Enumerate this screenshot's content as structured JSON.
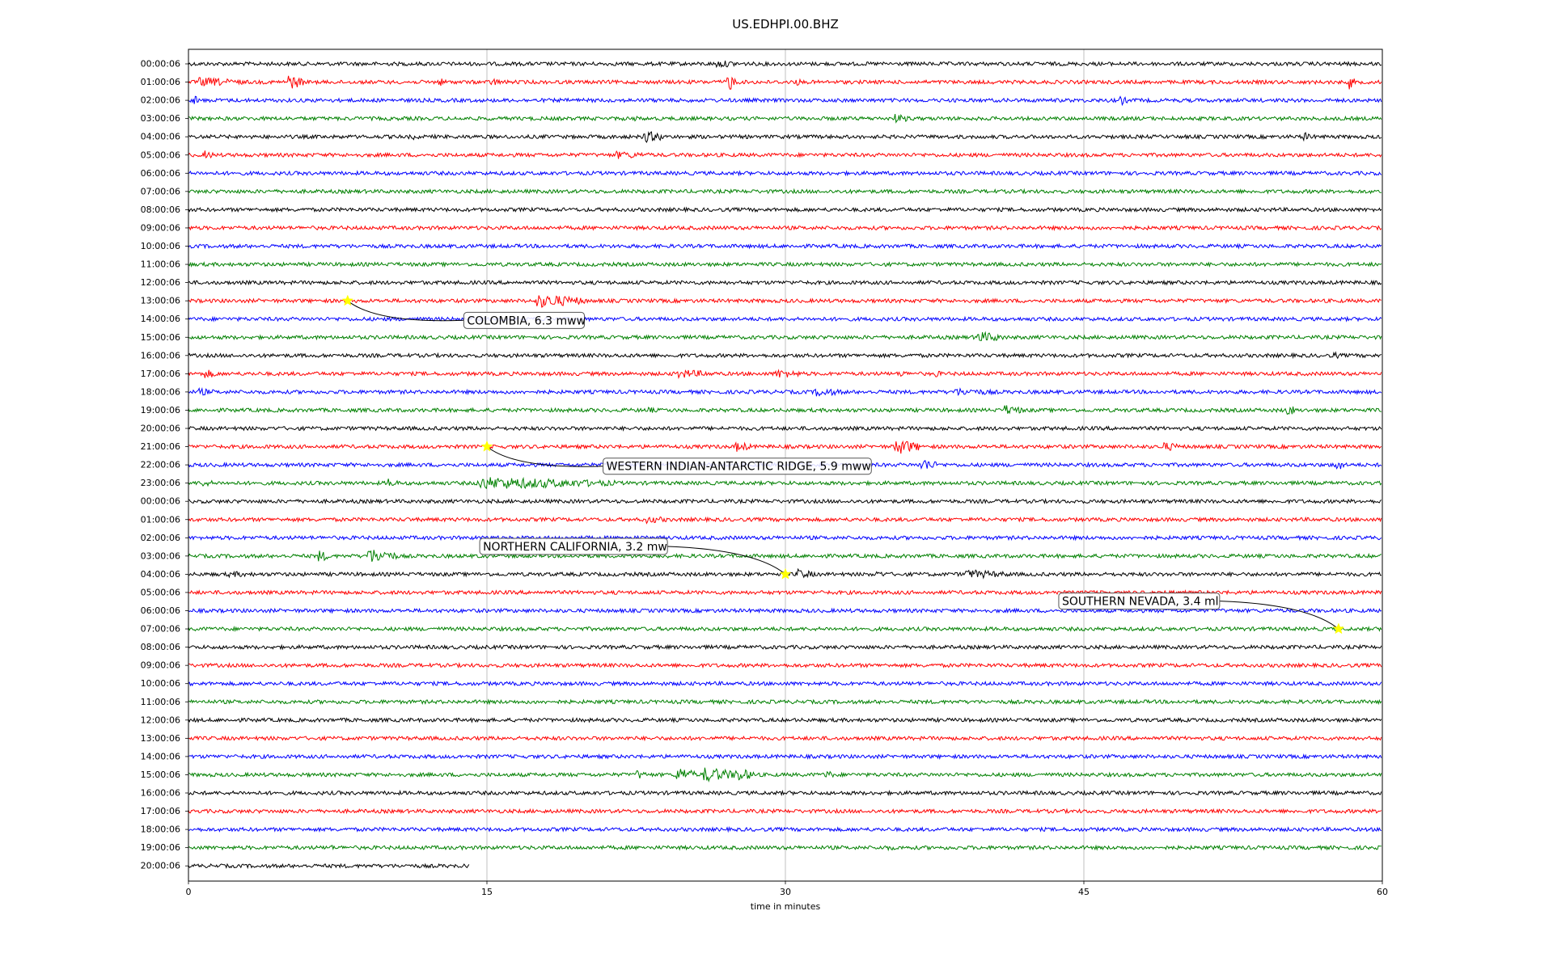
{
  "chart_data": {
    "type": "line",
    "title": "US.EDHPI.00.BHZ",
    "xlabel": "time in minutes",
    "ylabel": "",
    "xlim": [
      0,
      60
    ],
    "xticks": [
      0,
      15,
      30,
      45,
      60
    ],
    "grid_x": true,
    "trace_colors": [
      "#000000",
      "#ff0000",
      "#0000ff",
      "#008000"
    ],
    "row_labels": [
      "00:00:06",
      "01:00:06",
      "02:00:06",
      "03:00:06",
      "04:00:06",
      "05:00:06",
      "06:00:06",
      "07:00:06",
      "08:00:06",
      "09:00:06",
      "10:00:06",
      "11:00:06",
      "12:00:06",
      "13:00:06",
      "14:00:06",
      "15:00:06",
      "16:00:06",
      "17:00:06",
      "18:00:06",
      "19:00:06",
      "20:00:06",
      "21:00:06",
      "22:00:06",
      "23:00:06",
      "00:00:06",
      "01:00:06",
      "02:00:06",
      "03:00:06",
      "04:00:06",
      "05:00:06",
      "06:00:06",
      "07:00:06",
      "08:00:06",
      "09:00:06",
      "10:00:06",
      "11:00:06",
      "12:00:06",
      "13:00:06",
      "14:00:06",
      "15:00:06",
      "16:00:06",
      "17:00:06",
      "18:00:06",
      "19:00:06",
      "20:00:06"
    ],
    "last_row_end_minute": 14.1,
    "bursts": [
      {
        "row": 0,
        "x": 26.5,
        "amp": 5,
        "dur": 1.5
      },
      {
        "row": 1,
        "x": 0.5,
        "amp": 6,
        "dur": 2.5
      },
      {
        "row": 1,
        "x": 5,
        "amp": 10,
        "dur": 0.8
      },
      {
        "row": 1,
        "x": 12.5,
        "amp": 6,
        "dur": 0.5
      },
      {
        "row": 1,
        "x": 15.2,
        "amp": 6,
        "dur": 0.5
      },
      {
        "row": 1,
        "x": 27,
        "amp": 14,
        "dur": 0.5
      },
      {
        "row": 1,
        "x": 30.5,
        "amp": 6,
        "dur": 0.3
      },
      {
        "row": 1,
        "x": 58.3,
        "amp": 10,
        "dur": 0.3
      },
      {
        "row": 2,
        "x": 0.2,
        "amp": 9,
        "dur": 0.3
      },
      {
        "row": 2,
        "x": 46.8,
        "amp": 7,
        "dur": 0.4
      },
      {
        "row": 3,
        "x": 22.3,
        "amp": 5,
        "dur": 0.3
      },
      {
        "row": 3,
        "x": 35.5,
        "amp": 6,
        "dur": 0.8
      },
      {
        "row": 4,
        "x": 11.3,
        "amp": 4,
        "dur": 0.4
      },
      {
        "row": 4,
        "x": 22.8,
        "amp": 8,
        "dur": 1.2
      },
      {
        "row": 4,
        "x": 56,
        "amp": 6,
        "dur": 0.6
      },
      {
        "row": 5,
        "x": 0.8,
        "amp": 6,
        "dur": 0.5
      },
      {
        "row": 5,
        "x": 21.5,
        "amp": 5,
        "dur": 2
      },
      {
        "row": 13,
        "x": 17.5,
        "amp": 9,
        "dur": 2.5
      },
      {
        "row": 15,
        "x": 39.5,
        "amp": 8,
        "dur": 1.5
      },
      {
        "row": 16,
        "x": 57.5,
        "amp": 5,
        "dur": 0.5
      },
      {
        "row": 17,
        "x": 0.8,
        "amp": 6,
        "dur": 0.8
      },
      {
        "row": 17,
        "x": 24.5,
        "amp": 6,
        "dur": 2
      },
      {
        "row": 17,
        "x": 29.5,
        "amp": 6,
        "dur": 1.5
      },
      {
        "row": 17,
        "x": 35.8,
        "amp": 6,
        "dur": 0.3
      },
      {
        "row": 17,
        "x": 37.5,
        "amp": 5,
        "dur": 0.4
      },
      {
        "row": 18,
        "x": 0.5,
        "amp": 5,
        "dur": 1
      },
      {
        "row": 18,
        "x": 31.5,
        "amp": 6,
        "dur": 1.5
      },
      {
        "row": 18,
        "x": 38.5,
        "amp": 5,
        "dur": 2.5
      },
      {
        "row": 19,
        "x": 23,
        "amp": 5,
        "dur": 0.5
      },
      {
        "row": 19,
        "x": 41,
        "amp": 7,
        "dur": 1
      },
      {
        "row": 19,
        "x": 55.2,
        "amp": 9,
        "dur": 0.4
      },
      {
        "row": 21,
        "x": 27.5,
        "amp": 7,
        "dur": 0.8
      },
      {
        "row": 21,
        "x": 35.5,
        "amp": 11,
        "dur": 1.2
      },
      {
        "row": 21,
        "x": 49,
        "amp": 6,
        "dur": 1
      },
      {
        "row": 22,
        "x": 36.8,
        "amp": 9,
        "dur": 0.8
      },
      {
        "row": 22,
        "x": 57.6,
        "amp": 9,
        "dur": 0.5
      },
      {
        "row": 23,
        "x": 0.5,
        "amp": 5,
        "dur": 1
      },
      {
        "row": 23,
        "x": 10,
        "amp": 7,
        "dur": 0.5
      },
      {
        "row": 23,
        "x": 14.5,
        "amp": 8,
        "dur": 7
      },
      {
        "row": 25,
        "x": 11,
        "amp": 4,
        "dur": 0.3
      },
      {
        "row": 25,
        "x": 23,
        "amp": 5,
        "dur": 1.3
      },
      {
        "row": 27,
        "x": 6.5,
        "amp": 8,
        "dur": 0.6
      },
      {
        "row": 27,
        "x": 9,
        "amp": 10,
        "dur": 1.5
      },
      {
        "row": 27,
        "x": 31.8,
        "amp": 4,
        "dur": 0.3
      },
      {
        "row": 28,
        "x": 2,
        "amp": 4,
        "dur": 2
      },
      {
        "row": 28,
        "x": 30.5,
        "amp": 7,
        "dur": 1
      },
      {
        "row": 28,
        "x": 34.5,
        "amp": 5,
        "dur": 0.6
      },
      {
        "row": 28,
        "x": 39,
        "amp": 6,
        "dur": 2.5
      },
      {
        "row": 39,
        "x": 22.5,
        "amp": 7,
        "dur": 0.5
      },
      {
        "row": 39,
        "x": 24.5,
        "amp": 10,
        "dur": 1
      },
      {
        "row": 39,
        "x": 25.8,
        "amp": 10,
        "dur": 1.8
      },
      {
        "row": 39,
        "x": 27.5,
        "amp": 9,
        "dur": 1
      },
      {
        "row": 39,
        "x": 32,
        "amp": 6,
        "dur": 0.5
      },
      {
        "row": 43,
        "x": 7.1,
        "amp": 5,
        "dur": 0.2
      },
      {
        "row": 43,
        "x": 35,
        "amp": 4,
        "dur": 0.7
      }
    ],
    "events": [
      {
        "row": 13,
        "minute": 8.0,
        "label": "COLOMBIA, 6.3 mww",
        "label_minute": 14.0,
        "label_row": 14.25,
        "anchor": "start"
      },
      {
        "row": 21,
        "minute": 15.0,
        "label": "WESTERN INDIAN-ANTARCTIC RIDGE, 5.9 mww",
        "label_minute": 21.0,
        "label_row": 22.25,
        "anchor": "start"
      },
      {
        "row": 28,
        "minute": 30.0,
        "label": "NORTHERN CALIFORNIA, 3.2 mw",
        "label_minute": 14.8,
        "label_row": 26.65,
        "anchor": "start"
      },
      {
        "row": 31,
        "minute": 57.8,
        "label": "SOUTHERN NEVADA, 3.4 ml",
        "label_minute": 43.9,
        "label_row": 29.65,
        "anchor": "start"
      }
    ],
    "marker_color": "#ffff00"
  }
}
